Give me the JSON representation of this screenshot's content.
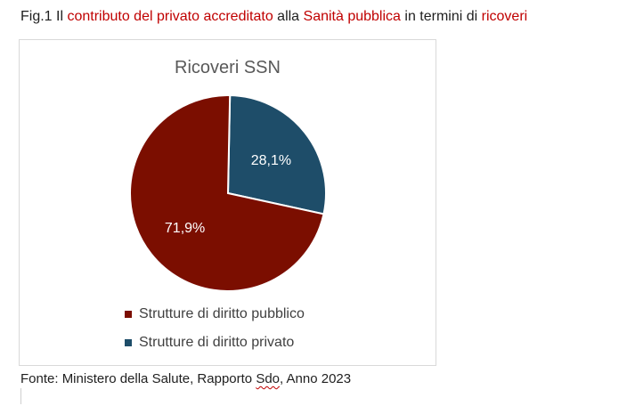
{
  "caption": {
    "prefix": "Fig.1 Il ",
    "hl1": "contributo del privato accreditato",
    "mid1": " alla ",
    "hl2": "Sanità pubblica",
    "mid2": " in termini di ",
    "hl3": "ricoveri"
  },
  "source": {
    "prefix": "Fonte: Ministero della Salute, Rapporto ",
    "flagged": "Sdo",
    "suffix": ", Anno 2023"
  },
  "colors": {
    "caption_highlight": "#c00000",
    "pubblico": "#7b0e00",
    "privato": "#1e4d69"
  },
  "chart_data": {
    "type": "pie",
    "title": "Ricoveri SSN",
    "legend_position": "bottom",
    "slices": [
      {
        "label": "Strutture di diritto pubblico",
        "value": 71.9,
        "display": "71,9%",
        "color": "#7b0e00"
      },
      {
        "label": "Strutture di diritto privato",
        "value": 28.1,
        "display": "28,1%",
        "color": "#1e4d69"
      }
    ]
  }
}
